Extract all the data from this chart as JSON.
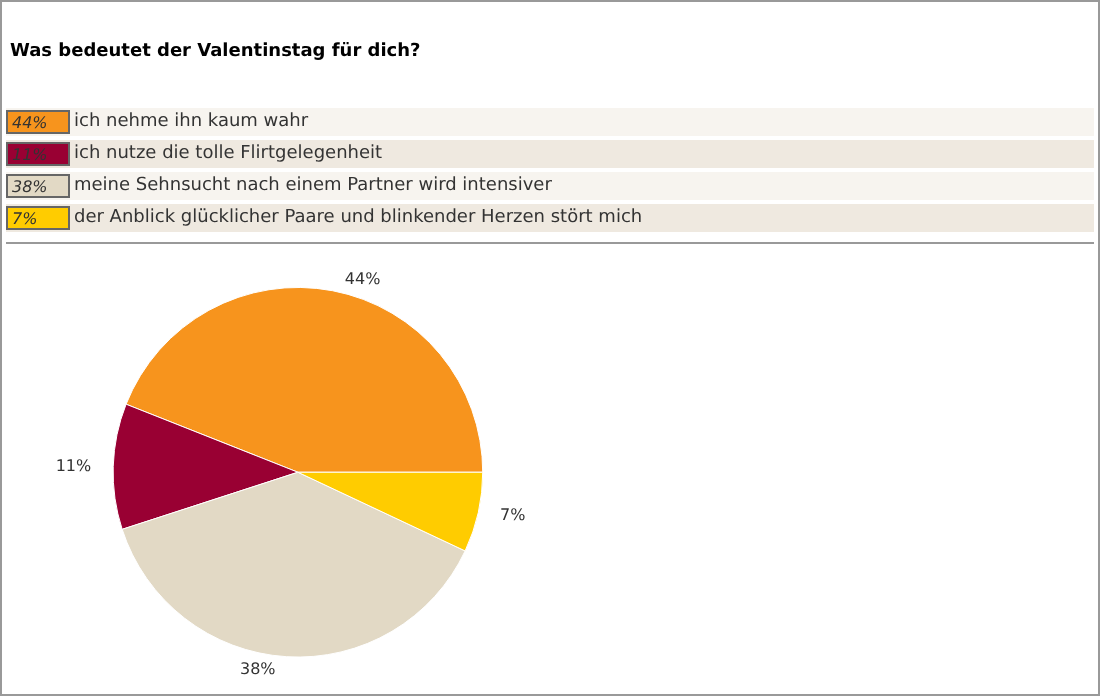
{
  "chart_data": {
    "type": "pie",
    "title": "Was bedeutet der Valentinstag für dich?",
    "categories": [
      "ich nehme ihn kaum wahr",
      "ich nutze die tolle Flirtgelegenheit",
      "meine Sehnsucht nach einem Partner wird intensiver",
      "der Anblick glücklicher Paare und blinkender Herzen stört mich"
    ],
    "values": [
      44,
      11,
      38,
      7
    ],
    "value_labels": [
      "44%",
      "11%",
      "38%",
      "7%"
    ],
    "colors": [
      "#f7941d",
      "#990033",
      "#e2d9c5",
      "#ffcc00"
    ],
    "legend": "top"
  }
}
